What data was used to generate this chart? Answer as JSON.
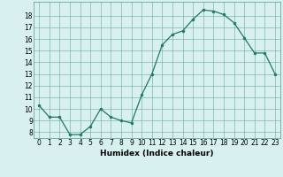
{
  "x": [
    0,
    1,
    2,
    3,
    4,
    5,
    6,
    7,
    8,
    9,
    10,
    11,
    12,
    13,
    14,
    15,
    16,
    17,
    18,
    19,
    20,
    21,
    22,
    23
  ],
  "y": [
    10.3,
    9.3,
    9.3,
    7.8,
    7.8,
    8.5,
    10.0,
    9.3,
    9.0,
    8.8,
    11.2,
    13.0,
    15.5,
    16.4,
    16.7,
    17.7,
    18.5,
    18.4,
    18.1,
    17.4,
    16.1,
    14.8,
    14.8,
    13.0
  ],
  "xlabel": "Humidex (Indice chaleur)",
  "xlim": [
    -0.5,
    23.5
  ],
  "ylim": [
    7.5,
    19.2
  ],
  "yticks": [
    8,
    9,
    10,
    11,
    12,
    13,
    14,
    15,
    16,
    17,
    18
  ],
  "xticks": [
    0,
    1,
    2,
    3,
    4,
    5,
    6,
    7,
    8,
    9,
    10,
    11,
    12,
    13,
    14,
    15,
    16,
    17,
    18,
    19,
    20,
    21,
    22,
    23
  ],
  "line_color": "#1e7a65",
  "marker_color": "#1e7a65",
  "bg_color": "#d8f0ef",
  "grid_color": "#68a89e",
  "label_fontsize": 6.5,
  "tick_fontsize": 5.5
}
